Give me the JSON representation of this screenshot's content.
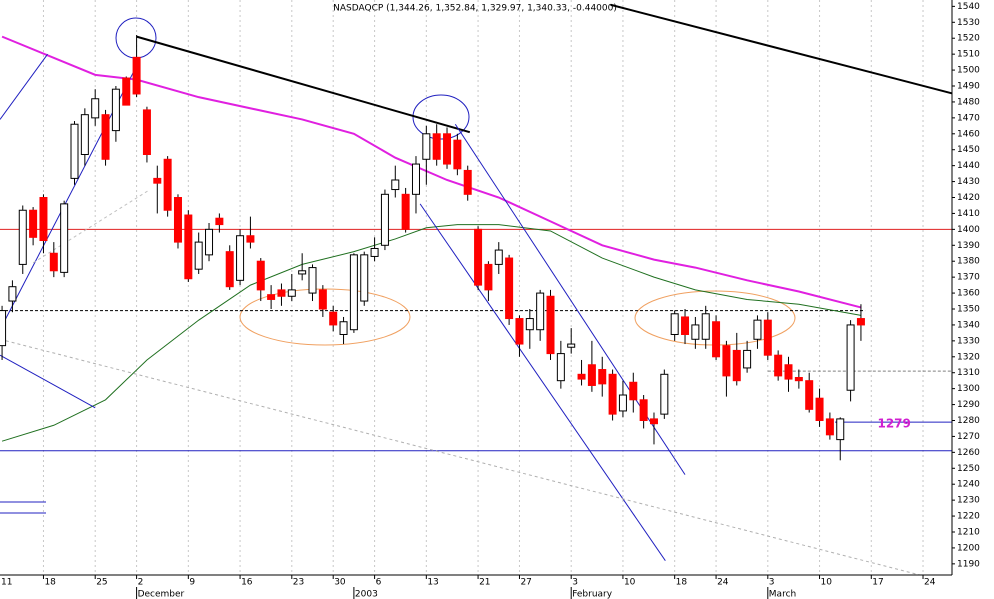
{
  "chart_data": {
    "type": "candlestick",
    "title": "NASDAQCP (1,344.26, 1,352.84, 1,329.97, 1,340.33, -0.44000)",
    "xlim": [
      0.8,
      92.8
    ],
    "ylim": [
      1183,
      1544
    ],
    "yticks": [
      1190,
      1200,
      1210,
      1220,
      1230,
      1240,
      1250,
      1260,
      1270,
      1280,
      1290,
      1300,
      1310,
      1320,
      1330,
      1340,
      1350,
      1360,
      1370,
      1380,
      1390,
      1400,
      1410,
      1420,
      1430,
      1440,
      1450,
      1460,
      1470,
      1480,
      1490,
      1500,
      1510,
      1520,
      1530,
      1540
    ],
    "xticks": [
      {
        "value": 0,
        "label": "11"
      },
      {
        "value": 5,
        "label": "18"
      },
      {
        "value": 10,
        "label": "25"
      },
      {
        "value": 14,
        "label": "2"
      },
      {
        "value": 19,
        "label": "9"
      },
      {
        "value": 24,
        "label": "16"
      },
      {
        "value": 29,
        "label": "23"
      },
      {
        "value": 33,
        "label": "30"
      },
      {
        "value": 37,
        "label": "6"
      },
      {
        "value": 42,
        "label": "13"
      },
      {
        "value": 47,
        "label": "21"
      },
      {
        "value": 51,
        "label": "27"
      },
      {
        "value": 56,
        "label": "3"
      },
      {
        "value": 61,
        "label": "10"
      },
      {
        "value": 66,
        "label": "18"
      },
      {
        "value": 70,
        "label": "24"
      },
      {
        "value": 75,
        "label": "3"
      },
      {
        "value": 80,
        "label": "10"
      },
      {
        "value": 85,
        "label": "17"
      },
      {
        "value": 90,
        "label": "24"
      }
    ],
    "month_labels": [
      {
        "value": 14,
        "label": "December"
      },
      {
        "value": 35,
        "label": "2003"
      },
      {
        "value": 56,
        "label": "February"
      },
      {
        "value": 75,
        "label": "March"
      }
    ],
    "grid": true,
    "up_color": "#ffffff",
    "down_color": "#ff0000",
    "candles": {
      "x": [
        1,
        2,
        3,
        4,
        5,
        6,
        7,
        8,
        9,
        10,
        11,
        12,
        13,
        14,
        15,
        16,
        17,
        18,
        19,
        20,
        21,
        22,
        23,
        24,
        25,
        26,
        27,
        28,
        29,
        30,
        31,
        32,
        33,
        34,
        35,
        36,
        37,
        38,
        39,
        40,
        41,
        42,
        43,
        44,
        45,
        46,
        47,
        48,
        49,
        50,
        51,
        52,
        53,
        54,
        55,
        56,
        57,
        58,
        59,
        60,
        61,
        62,
        63,
        64,
        65,
        66,
        67,
        68,
        69,
        70,
        71,
        72,
        73,
        74,
        75,
        76,
        77,
        78,
        79,
        80,
        81,
        82,
        83,
        84
      ],
      "open": [
        1327,
        1355,
        1378,
        1412,
        1420,
        1385,
        1373,
        1432,
        1447,
        1470,
        1472,
        1462,
        1495,
        1508,
        1475,
        1432,
        1444,
        1420,
        1409,
        1375,
        1384,
        1407,
        1386,
        1368,
        1396,
        1380,
        1359,
        1362,
        1358,
        1372,
        1360,
        1362,
        1348,
        1334,
        1337,
        1355,
        1383,
        1390,
        1425,
        1422,
        1422,
        1444,
        1460,
        1460,
        1456,
        1437,
        1400,
        1378,
        1378,
        1382,
        1344,
        1337,
        1337,
        1358,
        1305,
        1326,
        1309,
        1315,
        1312,
        1309,
        1286,
        1304,
        1293,
        1281,
        1284,
        1334,
        1345,
        1331,
        1331,
        1342,
        1327,
        1324,
        1313,
        1331,
        1343,
        1321,
        1315,
        1307,
        1305,
        1294,
        1281,
        1268,
        1299,
        1344
      ],
      "high": [
        1352,
        1368,
        1415,
        1414,
        1422,
        1392,
        1418,
        1468,
        1476,
        1488,
        1475,
        1490,
        1496,
        1522,
        1477,
        1440,
        1446,
        1422,
        1412,
        1398,
        1404,
        1410,
        1390,
        1400,
        1408,
        1382,
        1365,
        1366,
        1372,
        1385,
        1378,
        1365,
        1352,
        1345,
        1385,
        1386,
        1395,
        1425,
        1440,
        1426,
        1446,
        1465,
        1466,
        1464,
        1460,
        1440,
        1402,
        1380,
        1392,
        1384,
        1346,
        1350,
        1362,
        1362,
        1330,
        1338,
        1318,
        1330,
        1320,
        1312,
        1305,
        1310,
        1296,
        1285,
        1312,
        1349,
        1350,
        1345,
        1352,
        1346,
        1330,
        1335,
        1330,
        1346,
        1348,
        1324,
        1320,
        1312,
        1310,
        1300,
        1285,
        1282,
        1343,
        1353
      ],
      "low": [
        1318,
        1348,
        1372,
        1390,
        1385,
        1370,
        1370,
        1428,
        1440,
        1465,
        1440,
        1455,
        1478,
        1483,
        1442,
        1410,
        1408,
        1388,
        1367,
        1372,
        1380,
        1398,
        1362,
        1365,
        1388,
        1355,
        1350,
        1352,
        1355,
        1368,
        1355,
        1345,
        1336,
        1328,
        1335,
        1352,
        1380,
        1387,
        1420,
        1398,
        1410,
        1428,
        1440,
        1438,
        1434,
        1418,
        1362,
        1355,
        1372,
        1340,
        1320,
        1325,
        1330,
        1318,
        1300,
        1322,
        1302,
        1298,
        1295,
        1280,
        1282,
        1285,
        1275,
        1265,
        1281,
        1330,
        1328,
        1325,
        1325,
        1318,
        1295,
        1302,
        1310,
        1325,
        1318,
        1305,
        1298,
        1300,
        1285,
        1276,
        1268,
        1255,
        1292,
        1330
      ],
      "close": [
        1349,
        1364,
        1412,
        1395,
        1393,
        1374,
        1416,
        1466,
        1472,
        1482,
        1444,
        1488,
        1478,
        1485,
        1447,
        1429,
        1412,
        1392,
        1369,
        1392,
        1400,
        1403,
        1364,
        1396,
        1392,
        1362,
        1356,
        1358,
        1362,
        1374,
        1376,
        1350,
        1340,
        1342,
        1384,
        1384,
        1388,
        1422,
        1431,
        1400,
        1441,
        1460,
        1444,
        1441,
        1438,
        1422,
        1365,
        1362,
        1387,
        1344,
        1328,
        1344,
        1360,
        1322,
        1322,
        1328,
        1306,
        1302,
        1303,
        1284,
        1296,
        1293,
        1280,
        1278,
        1309,
        1347,
        1334,
        1340,
        1347,
        1320,
        1308,
        1305,
        1324,
        1343,
        1321,
        1308,
        1306,
        1305,
        1287,
        1280,
        1271,
        1281,
        1340,
        1340
      ]
    },
    "lines": [
      {
        "color": "#e020e0",
        "width": 2,
        "dash": false,
        "x": [
          1,
          10,
          14,
          20,
          30,
          35,
          39,
          44,
          49,
          54,
          59,
          64,
          68,
          73,
          78,
          84
        ],
        "values": [
          1521,
          1497,
          1494,
          1483,
          1469,
          1460,
          1445,
          1431,
          1420,
          1405,
          1390,
          1381,
          1376,
          1368,
          1361,
          1351
        ]
      },
      {
        "color": "#207020",
        "width": 1,
        "dash": false,
        "x": [
          1,
          6,
          11,
          15,
          20,
          25,
          30,
          35,
          39,
          42,
          45,
          49,
          54,
          59,
          64,
          68,
          73,
          78,
          84
        ],
        "values": [
          1267,
          1277,
          1293,
          1318,
          1343,
          1365,
          1378,
          1386,
          1394,
          1401,
          1403,
          1403,
          1399,
          1382,
          1370,
          1362,
          1356,
          1353,
          1346
        ]
      },
      {
        "color": "#000000",
        "width": 2,
        "dash": false,
        "x": [
          14,
          46.2
        ],
        "values": [
          1521,
          1461
        ]
      },
      {
        "color": "#000000",
        "width": 2,
        "dash": false,
        "x": [
          59.8,
          96
        ],
        "values": [
          1541,
          1480
        ]
      },
      {
        "color": "#2020c0",
        "width": 1,
        "dash": false,
        "x": [
          0.8,
          5.4
        ],
        "values": [
          1469,
          1510
        ]
      },
      {
        "color": "#2020c0",
        "width": 1,
        "dash": false,
        "x": [
          0.8,
          13.8
        ],
        "values": [
          1337,
          1500
        ]
      },
      {
        "color": "#2020c0",
        "width": 1,
        "dash": false,
        "x": [
          0.8,
          10
        ],
        "values": [
          1321,
          1288
        ]
      },
      {
        "color": "#2020c0",
        "width": 1,
        "dash": false,
        "x": [
          44.8,
          67
        ],
        "values": [
          1466,
          1246
        ]
      },
      {
        "color": "#2020c0",
        "width": 1,
        "dash": false,
        "x": [
          41.4,
          65.1
        ],
        "values": [
          1416,
          1192
        ]
      },
      {
        "color": "#b0b0b0",
        "width": 1,
        "dash": true,
        "x": [
          0.8,
          89.7
        ],
        "values": [
          1331,
          1183
        ]
      },
      {
        "color": "#c0c0c0",
        "width": 1,
        "dash": true,
        "x": [
          4,
          15.3
        ],
        "values": [
          1379,
          1425
        ]
      }
    ],
    "hlines": [
      {
        "value": 1400,
        "color": "#e02020",
        "from": 0.8,
        "to": 92.8,
        "dash": false
      },
      {
        "value": 1261,
        "color": "#2020c0",
        "from": 0.8,
        "to": 92.8,
        "dash": false
      },
      {
        "value": 1349,
        "color": "#000000",
        "from": 0.8,
        "to": 84.4,
        "dash": true
      },
      {
        "value": 1311,
        "color": "#808080",
        "from": 75,
        "to": 92.8,
        "dash": true
      },
      {
        "value": 1279,
        "color": "#2020c0",
        "from": 81.5,
        "to": 92.8,
        "dash": false
      }
    ],
    "annotation": {
      "text": "1279",
      "value": 1279,
      "x": 85.6
    }
  }
}
